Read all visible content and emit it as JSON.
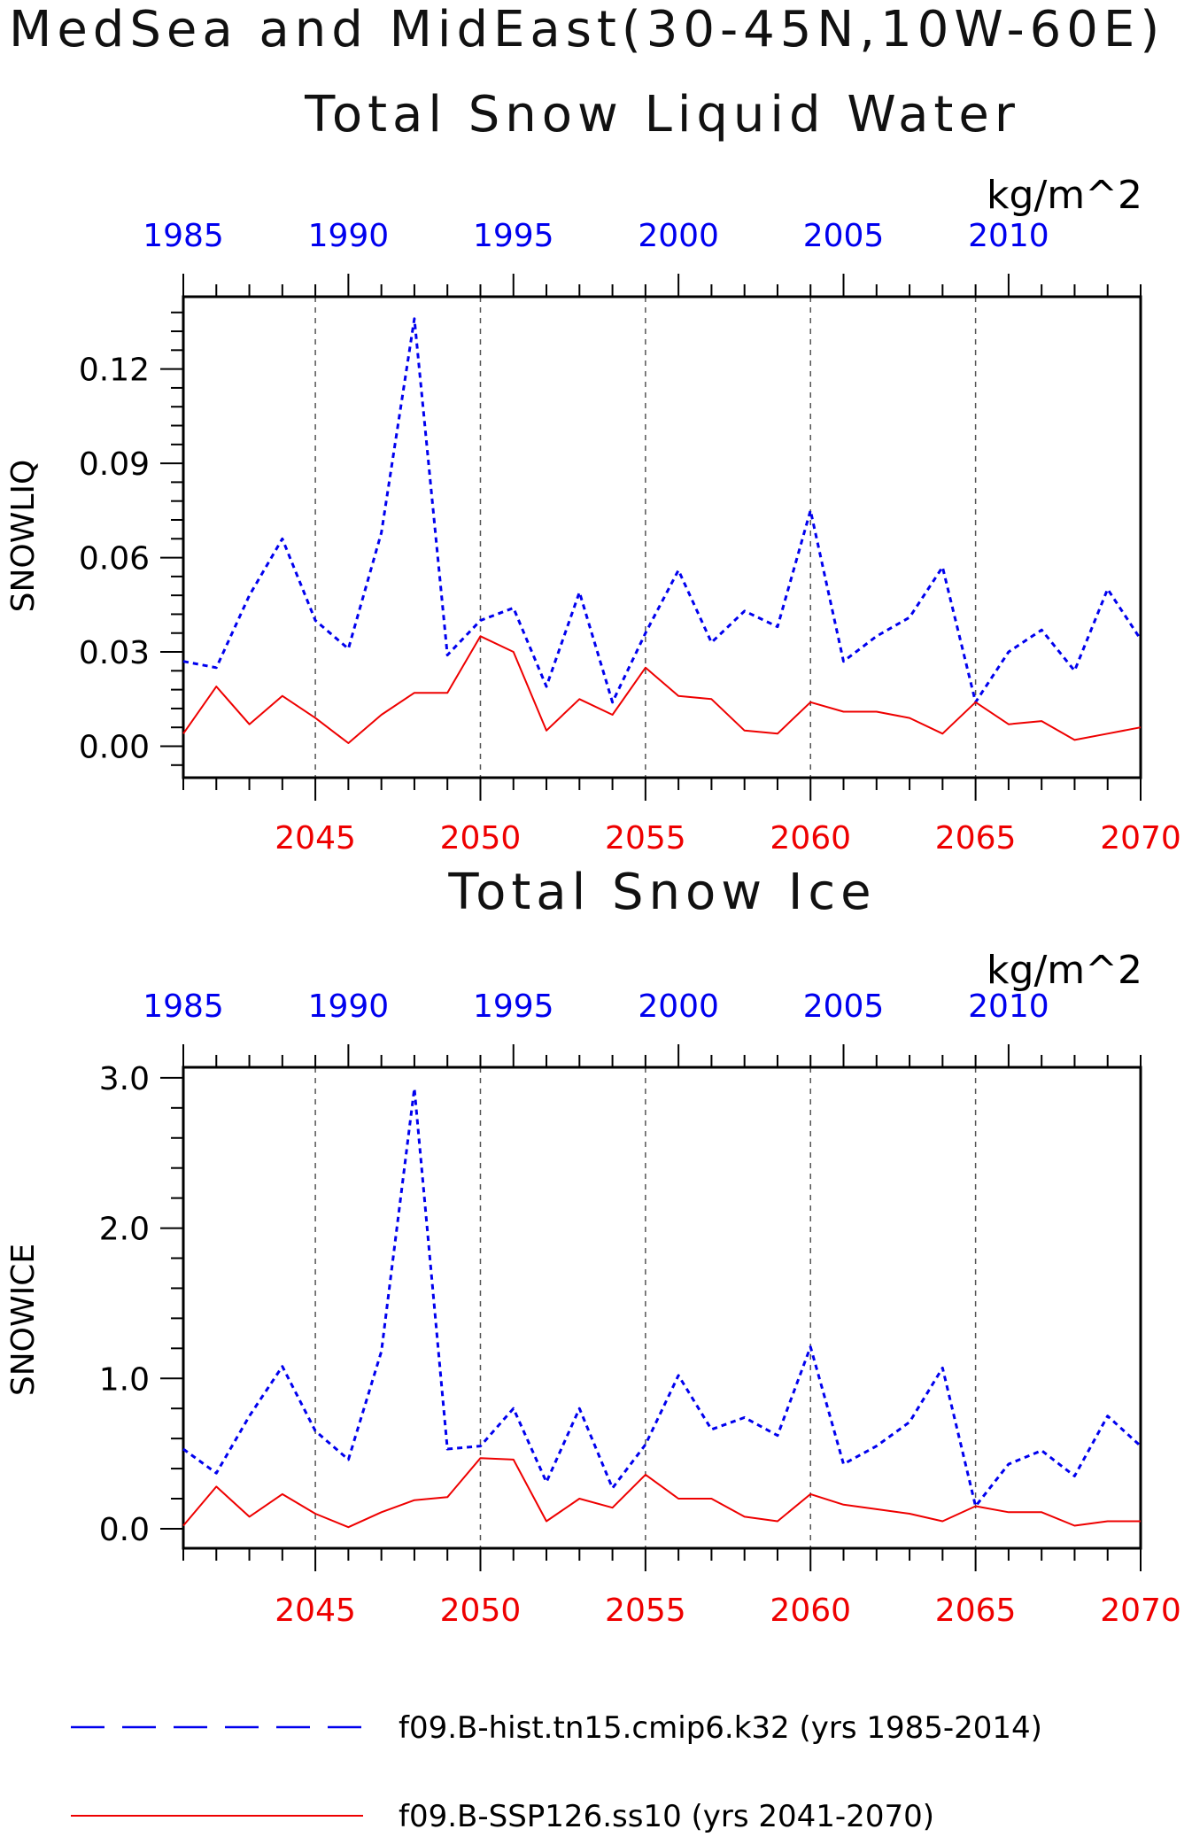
{
  "page": {
    "title_line1": "MedSea and MidEast(30-45N,10W-60E)"
  },
  "colors": {
    "hist": "#0000ee",
    "ssp": "#ee0000",
    "axis": "#000000"
  },
  "legend": {
    "hist_label": "f09.B-hist.tn15.cmip6.k32 (yrs 1985-2014)",
    "ssp_label": "f09.B-SSP126.ss10 (yrs 2041-2070)"
  },
  "chart_data": [
    {
      "type": "line",
      "title": "Total Snow Liquid Water",
      "units": "kg/m^2",
      "ylabel": "SNOWLIQ",
      "ylim": [
        -0.01,
        0.143
      ],
      "yticks": [
        0.0,
        0.03,
        0.06,
        0.09,
        0.12
      ],
      "ytick_labels": [
        "0.00",
        "0.03",
        "0.06",
        "0.09",
        "0.12"
      ],
      "grid": "dashed vertical at bottom-axis major ticks",
      "top_axis_years": [
        "1985",
        "1990",
        "1995",
        "2000",
        "2005",
        "2010"
      ],
      "bottom_axis_years": [
        "2045",
        "2050",
        "2055",
        "2060",
        "2065",
        "2070"
      ],
      "series": [
        {
          "name": "f09.B-hist.tn15.cmip6.k32 (yrs 1985-2014)",
          "x": [
            1985,
            1986,
            1987,
            1988,
            1989,
            1990,
            1991,
            1992,
            1993,
            1994,
            1995,
            1996,
            1997,
            1998,
            1999,
            2000,
            2001,
            2002,
            2003,
            2004,
            2005,
            2006,
            2007,
            2008,
            2009,
            2010,
            2011,
            2012,
            2013,
            2014
          ],
          "values": [
            0.027,
            0.025,
            0.048,
            0.066,
            0.04,
            0.031,
            0.068,
            0.136,
            0.029,
            0.04,
            0.044,
            0.019,
            0.049,
            0.014,
            0.036,
            0.056,
            0.033,
            0.043,
            0.038,
            0.075,
            0.027,
            0.035,
            0.041,
            0.057,
            0.014,
            0.03,
            0.037,
            0.024,
            0.05,
            0.034
          ]
        },
        {
          "name": "f09.B-SSP126.ss10 (yrs 2041-2070)",
          "x": [
            2041,
            2042,
            2043,
            2044,
            2045,
            2046,
            2047,
            2048,
            2049,
            2050,
            2051,
            2052,
            2053,
            2054,
            2055,
            2056,
            2057,
            2058,
            2059,
            2060,
            2061,
            2062,
            2063,
            2064,
            2065,
            2066,
            2067,
            2068,
            2069,
            2070
          ],
          "values": [
            0.004,
            0.019,
            0.007,
            0.016,
            0.009,
            0.001,
            0.01,
            0.017,
            0.017,
            0.035,
            0.03,
            0.005,
            0.015,
            0.01,
            0.025,
            0.016,
            0.015,
            0.005,
            0.004,
            0.014,
            0.011,
            0.011,
            0.009,
            0.004,
            0.014,
            0.007,
            0.008,
            0.002,
            0.004,
            0.006
          ]
        }
      ]
    },
    {
      "type": "line",
      "title": "Total Snow Ice",
      "units": "kg/m^2",
      "ylabel": "SNOWICE",
      "ylim": [
        -0.13,
        3.07
      ],
      "yticks": [
        0.0,
        1.0,
        2.0,
        3.0
      ],
      "ytick_labels": [
        "0.0",
        "1.0",
        "2.0",
        "3.0"
      ],
      "grid": "dashed vertical at bottom-axis major ticks",
      "top_axis_years": [
        "1985",
        "1990",
        "1995",
        "2000",
        "2005",
        "2010"
      ],
      "bottom_axis_years": [
        "2045",
        "2050",
        "2055",
        "2060",
        "2065",
        "2070"
      ],
      "series": [
        {
          "name": "f09.B-hist.tn15.cmip6.k32 (yrs 1985-2014)",
          "x": [
            1985,
            1986,
            1987,
            1988,
            1989,
            1990,
            1991,
            1992,
            1993,
            1994,
            1995,
            1996,
            1997,
            1998,
            1999,
            2000,
            2001,
            2002,
            2003,
            2004,
            2005,
            2006,
            2007,
            2008,
            2009,
            2010,
            2011,
            2012,
            2013,
            2014
          ],
          "values": [
            0.53,
            0.37,
            0.75,
            1.08,
            0.65,
            0.46,
            1.18,
            2.93,
            0.53,
            0.55,
            0.8,
            0.31,
            0.8,
            0.27,
            0.56,
            1.02,
            0.66,
            0.74,
            0.62,
            1.21,
            0.43,
            0.55,
            0.71,
            1.07,
            0.15,
            0.43,
            0.52,
            0.35,
            0.75,
            0.55
          ]
        },
        {
          "name": "f09.B-SSP126.ss10 (yrs 2041-2070)",
          "x": [
            2041,
            2042,
            2043,
            2044,
            2045,
            2046,
            2047,
            2048,
            2049,
            2050,
            2051,
            2052,
            2053,
            2054,
            2055,
            2056,
            2057,
            2058,
            2059,
            2060,
            2061,
            2062,
            2063,
            2064,
            2065,
            2066,
            2067,
            2068,
            2069,
            2070
          ],
          "values": [
            0.02,
            0.28,
            0.08,
            0.23,
            0.1,
            0.01,
            0.11,
            0.19,
            0.21,
            0.47,
            0.46,
            0.05,
            0.2,
            0.14,
            0.36,
            0.2,
            0.2,
            0.08,
            0.05,
            0.23,
            0.16,
            0.13,
            0.1,
            0.05,
            0.15,
            0.11,
            0.11,
            0.02,
            0.05,
            0.05
          ]
        }
      ]
    }
  ]
}
